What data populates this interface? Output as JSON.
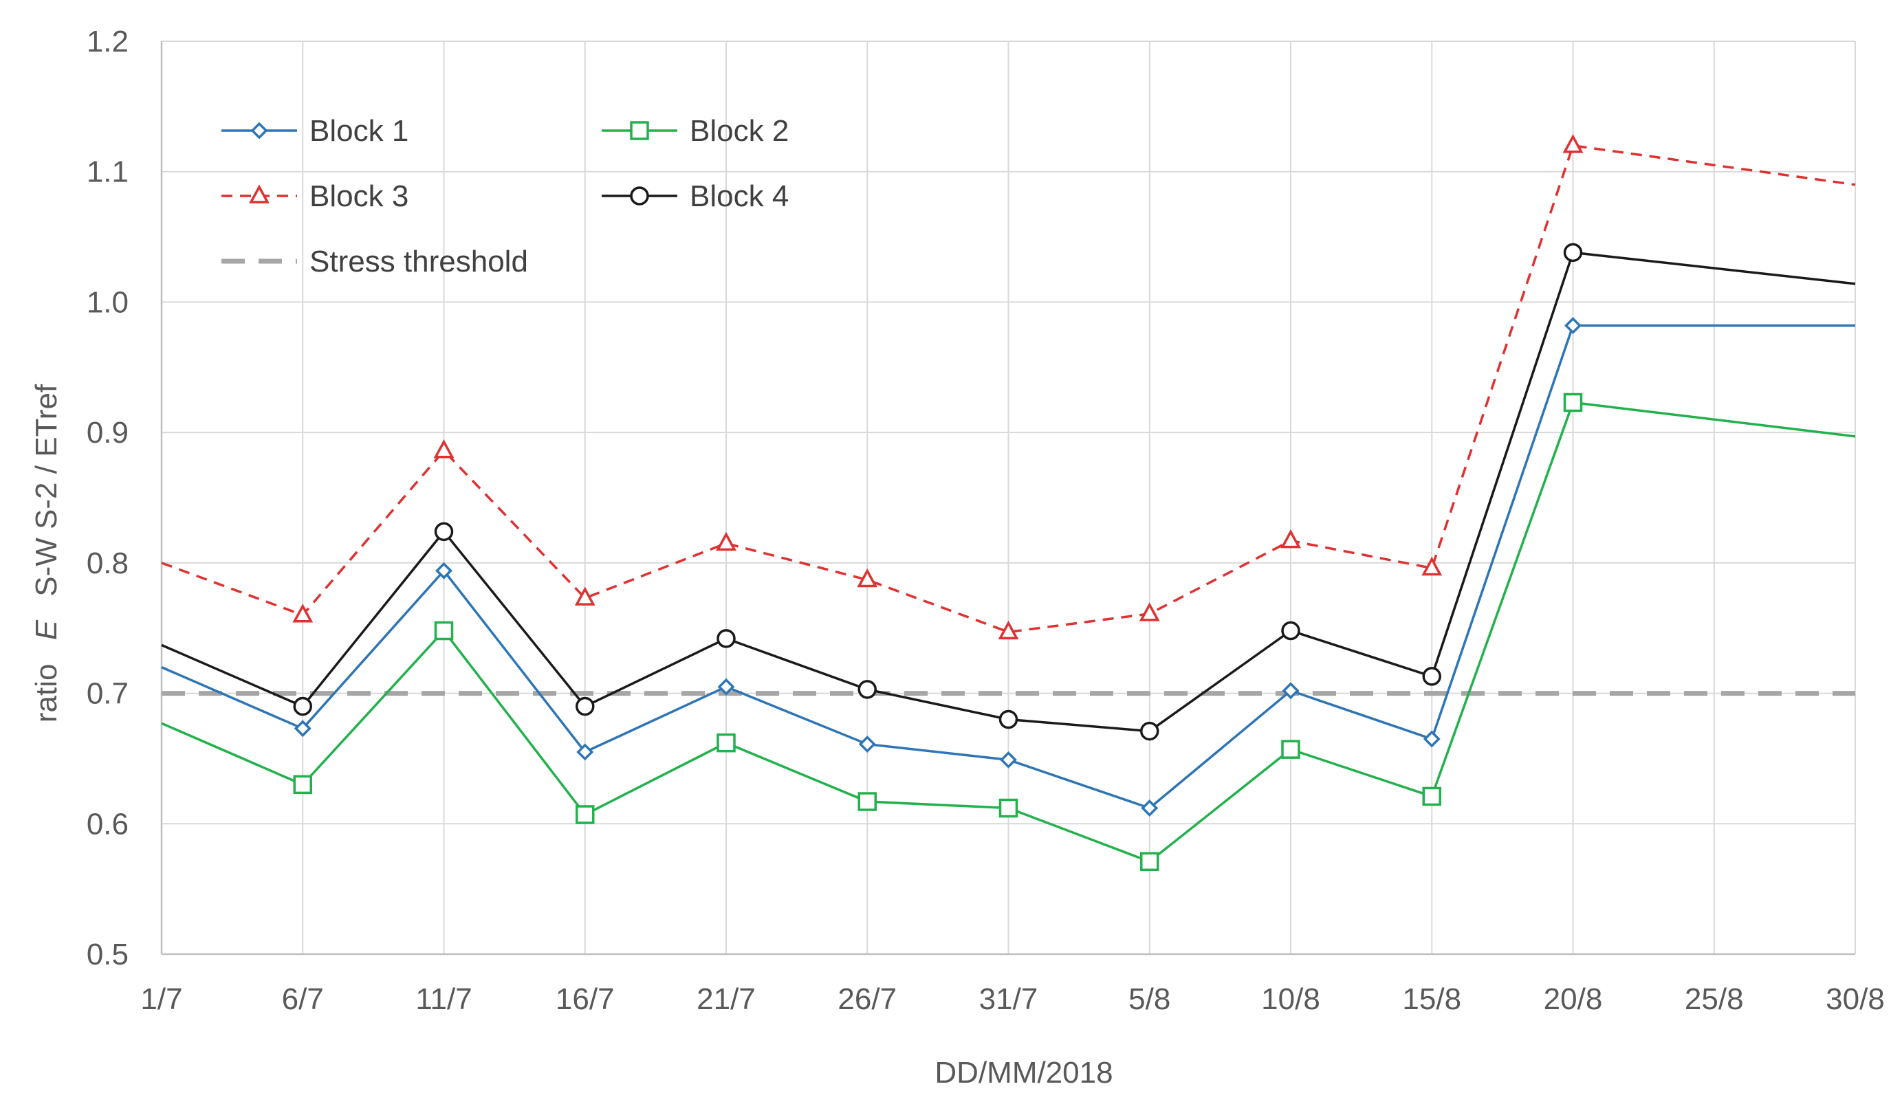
{
  "chart_data": {
    "type": "line",
    "title": "",
    "xlabel": "DD/MM/2018",
    "ylabel_parts": [
      "ratio",
      "E",
      "S-W S-2 / ETref"
    ],
    "ylim": [
      0.5,
      1.2
    ],
    "yticks": [
      0.5,
      0.6,
      0.7,
      0.8,
      0.9,
      1.0,
      1.1,
      1.2
    ],
    "ytick_labels": [
      "0.5",
      "0.6",
      "0.7",
      "0.8",
      "0.9",
      "1.0",
      "1.1",
      "1.2"
    ],
    "xlim": [
      0,
      60
    ],
    "xticks": [
      0,
      5,
      10,
      15,
      20,
      25,
      30,
      35,
      40,
      45,
      50,
      55,
      60
    ],
    "xtick_labels": [
      "1/7",
      "6/7",
      "11/7",
      "16/7",
      "21/7",
      "26/7",
      "31/7",
      "5/8",
      "10/8",
      "15/8",
      "20/8",
      "25/8",
      "30/8"
    ],
    "grid": true,
    "legend_position": "top-left",
    "series": [
      {
        "name": "Block 1",
        "color": "#2e75b6",
        "marker": "diamond",
        "dash": "solid",
        "x": [
          0,
          5,
          10,
          15,
          20,
          25,
          30,
          35,
          40,
          45,
          50,
          60
        ],
        "values": [
          0.72,
          0.673,
          0.794,
          0.655,
          0.705,
          0.661,
          0.649,
          0.612,
          0.702,
          0.665,
          0.982,
          0.982
        ],
        "marker_indices": [
          1,
          2,
          3,
          4,
          5,
          6,
          7,
          8,
          9,
          10
        ]
      },
      {
        "name": "Block 2",
        "color": "#22b14c",
        "marker": "square",
        "dash": "solid",
        "x": [
          0,
          5,
          10,
          15,
          20,
          25,
          30,
          35,
          40,
          45,
          50,
          60
        ],
        "values": [
          0.677,
          0.63,
          0.748,
          0.607,
          0.662,
          0.617,
          0.612,
          0.571,
          0.657,
          0.621,
          0.923,
          0.897
        ],
        "marker_indices": [
          1,
          2,
          3,
          4,
          5,
          6,
          7,
          8,
          9,
          10
        ]
      },
      {
        "name": "Block 3",
        "color": "#e03131",
        "marker": "triangle",
        "dash": "dashed",
        "x": [
          0,
          5,
          10,
          15,
          20,
          25,
          30,
          35,
          40,
          45,
          50,
          60
        ],
        "values": [
          0.8,
          0.76,
          0.886,
          0.773,
          0.815,
          0.787,
          0.747,
          0.761,
          0.817,
          0.796,
          1.12,
          1.09
        ],
        "marker_indices": [
          1,
          2,
          3,
          4,
          5,
          6,
          7,
          8,
          9,
          10
        ]
      },
      {
        "name": "Block 4",
        "color": "#1a1a1a",
        "marker": "circle",
        "dash": "solid",
        "x": [
          0,
          5,
          10,
          15,
          20,
          25,
          30,
          35,
          40,
          45,
          50,
          60
        ],
        "values": [
          0.737,
          0.69,
          0.824,
          0.69,
          0.742,
          0.703,
          0.68,
          0.671,
          0.748,
          0.713,
          1.038,
          1.014
        ],
        "marker_indices": [
          1,
          2,
          3,
          4,
          5,
          6,
          7,
          8,
          9,
          10
        ]
      }
    ],
    "threshold": {
      "name": "Stress threshold",
      "value": 0.7,
      "color": "#a6a6a6",
      "dash": "dashed"
    },
    "legend": [
      {
        "label": "Block 1",
        "series_index": 0
      },
      {
        "label": "Block 2",
        "series_index": 1
      },
      {
        "label": "Block 3",
        "series_index": 2
      },
      {
        "label": "Block 4",
        "series_index": 3
      },
      {
        "label": "Stress threshold",
        "series_index": -1
      }
    ],
    "gridline_color": "#d9d9d9",
    "axis_color": "#bfbfbf"
  }
}
